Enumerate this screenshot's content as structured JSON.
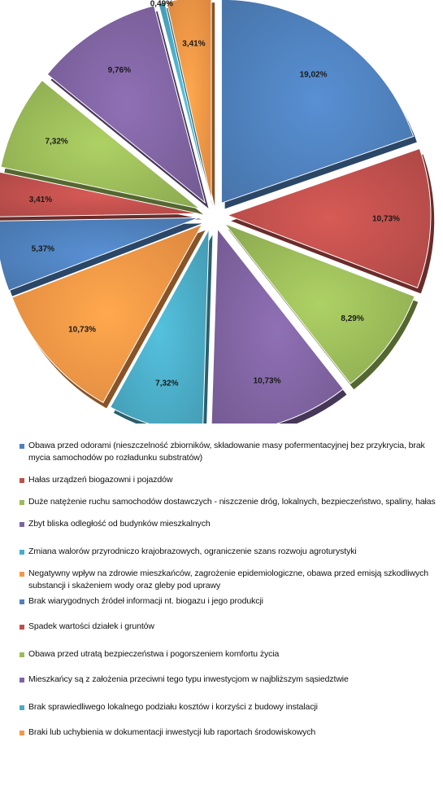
{
  "chart_data": {
    "type": "pie",
    "title": "",
    "slices": [
      {
        "label": "Obawa przed odorami (nieszczelność zbiorników, składowanie masy pofermentacyjnej bez przykrycia, brak mycia samochodów po rozładunku substratów)",
        "value": 19.02,
        "display": "19,02%",
        "color": "#4F81BD"
      },
      {
        "label": "Hałas urządzeń biogazowni i pojazdów",
        "value": 10.73,
        "display": "10,73%",
        "color": "#C0504D"
      },
      {
        "label": "Duże natężenie ruchu samochodów dostawczych - niszczenie dróg, lokalnych, bezpieczeństwo, spaliny, hałas",
        "value": 8.29,
        "display": "8,29%",
        "color": "#9BBB59"
      },
      {
        "label": "Zbyt bliska odległość od budynków mieszkalnych",
        "value": 10.73,
        "display": "10,73%",
        "color": "#8064A2"
      },
      {
        "label": "Zmiana walorów przyrodniczo krajobrazowych, ograniczenie szans rozwoju agroturystyki",
        "value": 7.32,
        "display": "7,32%",
        "color": "#4BACC6"
      },
      {
        "label": "Negatywny wpływ na zdrowie mieszkańców, zagrożenie epidemiologiczne, obawa przed emisją szkodliwych substancji i skażeniem wody oraz gleby pod uprawy",
        "value": 10.73,
        "display": "10,73%",
        "color": "#F79646"
      },
      {
        "label": "Brak wiarygodnych źródeł informacji nt. biogazu i jego produkcji",
        "value": 5.37,
        "display": "5,37%",
        "color": "#4F81BD"
      },
      {
        "label": "Spadek wartości działek i gruntów",
        "value": 3.41,
        "display": "3,41%",
        "color": "#C0504D"
      },
      {
        "label": "Obawa przed utratą bezpieczeństwa i pogorszeniem komfortu życia",
        "value": 7.32,
        "display": "7,32%",
        "color": "#9BBB59"
      },
      {
        "label": "Mieszkańcy są z założenia przeciwni tego typu inwestycjom w najbliższym sąsiedztwie",
        "value": 9.76,
        "display": "9,76%",
        "color": "#8064A2"
      },
      {
        "label": "Brak sprawiedliwego lokalnego podziału kosztów i korzyści z budowy instalacji",
        "value": 0.49,
        "display": "0,49%",
        "color": "#4BACC6"
      },
      {
        "label": "Braki lub uchybienia w dokumentacji inwestycji lub raportach środowiskowych",
        "value": 3.41,
        "display": "3,41%",
        "color": "#F79646"
      }
    ],
    "legend_position": "bottom"
  }
}
